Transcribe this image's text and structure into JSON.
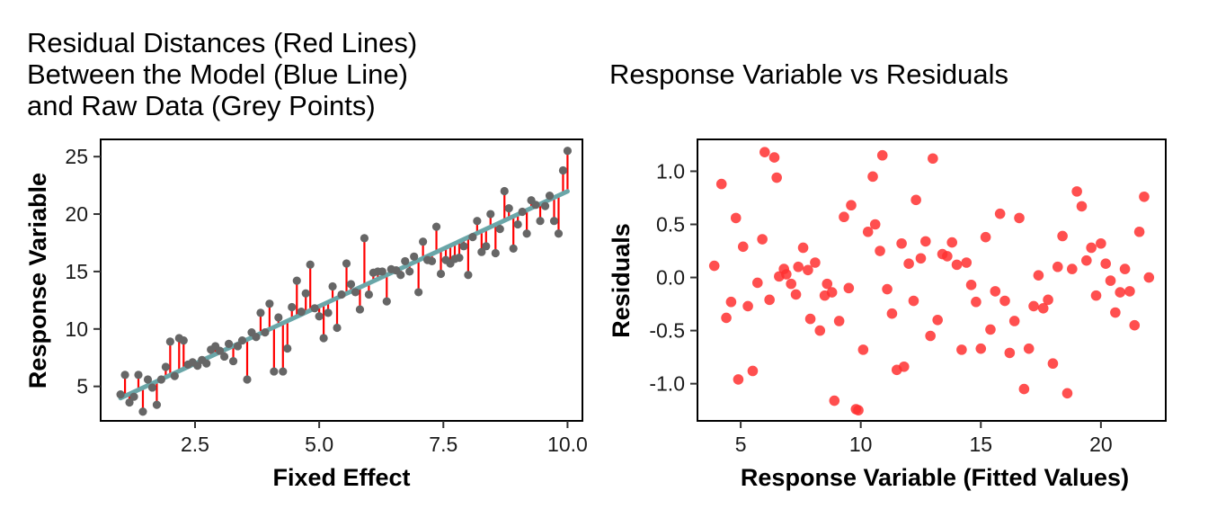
{
  "chart_data": [
    {
      "type": "scatter",
      "title_lines": [
        "Residual Distances (Red Lines)",
        "Between the Model (Blue Line)",
        "and Raw Data (Grey Points)"
      ],
      "xlabel": "Fixed Effect",
      "ylabel": "Response Variable",
      "xlim": [
        0.6,
        10.3
      ],
      "ylim": [
        2.0,
        26.5
      ],
      "xticks": [
        "2.5",
        "5.0",
        "7.5",
        "10.0"
      ],
      "yticks": [
        "5",
        "10",
        "15",
        "20",
        "25"
      ],
      "grid": false,
      "fit_line": {
        "intercept": 1.98,
        "slope": 2.0
      },
      "colors": {
        "points": "#666666",
        "residual_lines": "#ff0000",
        "fit_line": "#6aa6a8"
      },
      "x": [
        1.0,
        1.09,
        1.18,
        1.27,
        1.36,
        1.45,
        1.55,
        1.64,
        1.73,
        1.82,
        1.91,
        2.0,
        2.09,
        2.18,
        2.27,
        2.36,
        2.45,
        2.55,
        2.64,
        2.73,
        2.82,
        2.91,
        3.0,
        3.09,
        3.18,
        3.27,
        3.36,
        3.45,
        3.55,
        3.64,
        3.73,
        3.82,
        3.91,
        4.0,
        4.09,
        4.18,
        4.27,
        4.36,
        4.45,
        4.55,
        4.64,
        4.73,
        4.82,
        4.91,
        5.0,
        5.09,
        5.18,
        5.27,
        5.36,
        5.45,
        5.55,
        5.64,
        5.73,
        5.82,
        5.91,
        6.0,
        6.09,
        6.18,
        6.27,
        6.36,
        6.45,
        6.55,
        6.64,
        6.73,
        6.82,
        6.91,
        7.0,
        7.09,
        7.18,
        7.27,
        7.36,
        7.45,
        7.55,
        7.64,
        7.73,
        7.82,
        7.91,
        8.0,
        8.09,
        8.18,
        8.27,
        8.36,
        8.45,
        8.55,
        8.64,
        8.73,
        8.82,
        8.91,
        9.0,
        9.09,
        9.18,
        9.27,
        9.36,
        9.45,
        9.55,
        9.64,
        9.73,
        9.82,
        9.91,
        10.0
      ],
      "y": [
        4.3,
        6.0,
        3.6,
        4.1,
        6.0,
        2.8,
        5.6,
        4.9,
        3.4,
        5.6,
        6.7,
        8.9,
        5.9,
        9.2,
        9.0,
        6.9,
        7.1,
        6.8,
        7.3,
        7.0,
        8.2,
        8.5,
        8.1,
        7.6,
        8.7,
        7.2,
        8.5,
        9.0,
        5.6,
        9.7,
        9.3,
        11.4,
        9.7,
        12.2,
        6.3,
        11.0,
        6.3,
        8.3,
        11.9,
        14.2,
        11.5,
        13.1,
        15.6,
        11.8,
        11.1,
        9.2,
        11.4,
        13.7,
        10.1,
        13.0,
        15.7,
        13.9,
        13.2,
        11.7,
        17.9,
        13.0,
        14.9,
        15.0,
        15.0,
        12.4,
        15.2,
        15.1,
        14.7,
        15.9,
        15.0,
        16.3,
        13.2,
        17.6,
        16.0,
        15.9,
        18.9,
        14.8,
        16.0,
        15.7,
        16.1,
        16.2,
        17.2,
        14.7,
        18.0,
        19.4,
        16.7,
        17.2,
        20.0,
        16.6,
        18.7,
        22.0,
        20.5,
        17.0,
        19.1,
        20.2,
        18.3,
        21.2,
        20.8,
        19.4,
        20.7,
        21.6,
        19.4,
        18.3,
        23.8,
        25.5
      ],
      "point_labels": [
        {
          "x": 1.0,
          "y": 4.3
        }
      ]
    },
    {
      "type": "scatter",
      "title": "Response Variable vs Residuals",
      "xlabel": "Response Variable (Fitted Values)",
      "ylabel": "Residuals",
      "xlim": [
        3.2,
        22.7
      ],
      "ylim": [
        -1.35,
        1.3
      ],
      "xticks": [
        "5",
        "10",
        "15",
        "20"
      ],
      "yticks": [
        "1.0",
        "0.5",
        "0.0",
        "-0.5",
        "-1.0"
      ],
      "grid": false,
      "colors": {
        "points": "#ff3030"
      },
      "x": [
        3.9,
        4.2,
        4.4,
        4.6,
        4.8,
        4.9,
        5.1,
        5.3,
        5.5,
        5.7,
        5.9,
        6.0,
        6.2,
        6.4,
        6.5,
        6.6,
        6.8,
        6.9,
        7.1,
        7.3,
        7.4,
        7.6,
        7.8,
        7.9,
        8.1,
        8.3,
        8.5,
        8.6,
        8.8,
        8.9,
        9.1,
        9.3,
        9.5,
        9.6,
        9.8,
        9.9,
        10.1,
        10.3,
        10.5,
        10.6,
        10.8,
        10.9,
        11.1,
        11.3,
        11.5,
        11.7,
        11.8,
        12.0,
        12.2,
        12.3,
        12.5,
        12.7,
        12.9,
        13.0,
        13.2,
        13.4,
        13.6,
        13.8,
        14.0,
        14.2,
        14.4,
        14.6,
        14.8,
        15.0,
        15.2,
        15.4,
        15.6,
        15.8,
        16.0,
        16.2,
        16.4,
        16.6,
        16.8,
        17.0,
        17.2,
        17.4,
        17.6,
        17.8,
        18.0,
        18.2,
        18.4,
        18.6,
        18.8,
        19.0,
        19.2,
        19.4,
        19.6,
        19.8,
        20.0,
        20.2,
        20.4,
        20.6,
        20.8,
        21.0,
        21.2,
        21.4,
        21.6,
        21.8,
        22.0
      ],
      "y": [
        0.11,
        0.88,
        -0.38,
        -0.23,
        0.56,
        -0.96,
        0.29,
        -0.27,
        -0.88,
        -0.05,
        0.36,
        1.18,
        -0.21,
        1.13,
        0.94,
        0.01,
        0.08,
        0.03,
        -0.06,
        -0.16,
        0.1,
        0.28,
        0.07,
        -0.39,
        0.14,
        -0.5,
        -0.17,
        -0.06,
        -0.14,
        -1.16,
        -0.41,
        0.57,
        -0.1,
        0.68,
        -1.24,
        -1.25,
        -0.68,
        0.43,
        0.95,
        0.5,
        0.25,
        1.15,
        -0.11,
        -0.34,
        -0.87,
        0.32,
        -0.84,
        0.13,
        -0.22,
        0.73,
        0.18,
        0.34,
        -0.55,
        1.12,
        -0.4,
        0.22,
        0.2,
        0.33,
        0.12,
        -0.68,
        0.14,
        -0.07,
        -0.23,
        -0.67,
        0.38,
        -0.49,
        -0.13,
        0.6,
        -0.22,
        -0.71,
        -0.41,
        0.56,
        -1.05,
        -0.67,
        -0.27,
        0.02,
        -0.29,
        -0.21,
        -0.81,
        0.1,
        0.39,
        -1.09,
        0.08,
        0.81,
        0.67,
        0.16,
        0.28,
        -0.17,
        0.32,
        0.13,
        -0.03,
        -0.33,
        -0.14,
        0.08,
        -0.13,
        -0.45,
        0.43,
        0.76,
        0.0
      ]
    }
  ]
}
